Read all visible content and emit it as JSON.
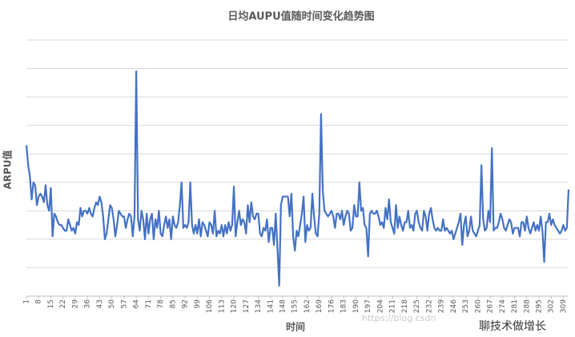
{
  "chart_data": {
    "type": "line",
    "title": "日均AUPU值随时间变化趋势图",
    "x_label": "时间",
    "y_label": "ARPU值",
    "annotations": [
      "https://blog.csdn",
      "聊技术做增长"
    ],
    "xlim": [
      1,
      312
    ],
    "xticks": [
      1,
      8,
      15,
      22,
      29,
      36,
      43,
      50,
      57,
      64,
      71,
      78,
      85,
      92,
      99,
      106,
      113,
      120,
      127,
      134,
      141,
      148,
      155,
      162,
      169,
      176,
      183,
      190,
      197,
      204,
      211,
      218,
      225,
      232,
      239,
      246,
      253,
      260,
      267,
      274,
      281,
      288,
      295,
      302,
      309
    ],
    "ylim": [
      0,
      9
    ],
    "yticks": [
      0,
      1,
      2,
      3,
      4,
      5,
      6,
      7,
      8,
      9
    ],
    "grid": true,
    "show_ytick_labels": false,
    "x": [
      1,
      2,
      3,
      4,
      5,
      6,
      7,
      8,
      9,
      10,
      11,
      12,
      13,
      14,
      15,
      16,
      17,
      18,
      19,
      20,
      21,
      22,
      23,
      24,
      25,
      26,
      27,
      28,
      29,
      30,
      31,
      32,
      33,
      34,
      35,
      36,
      37,
      38,
      39,
      40,
      41,
      42,
      43,
      44,
      45,
      46,
      47,
      48,
      49,
      50,
      51,
      52,
      53,
      54,
      55,
      56,
      57,
      58,
      59,
      60,
      61,
      62,
      63,
      64,
      65,
      66,
      67,
      68,
      69,
      70,
      71,
      72,
      73,
      74,
      75,
      76,
      77,
      78,
      79,
      80,
      81,
      82,
      83,
      84,
      85,
      86,
      87,
      88,
      89,
      90,
      91,
      92,
      93,
      94,
      95,
      96,
      97,
      98,
      99,
      100,
      101,
      102,
      103,
      104,
      105,
      106,
      107,
      108,
      109,
      110,
      111,
      112,
      113,
      114,
      115,
      116,
      117,
      118,
      119,
      120,
      121,
      122,
      123,
      124,
      125,
      126,
      127,
      128,
      129,
      130,
      131,
      132,
      133,
      134,
      135,
      136,
      137,
      138,
      139,
      140,
      141,
      142,
      143,
      144,
      145,
      146,
      147,
      148,
      149,
      150,
      151,
      152,
      153,
      154,
      155,
      156,
      157,
      158,
      159,
      160,
      161,
      162,
      163,
      164,
      165,
      166,
      167,
      168,
      169,
      170,
      171,
      172,
      173,
      174,
      175,
      176,
      177,
      178,
      179,
      180,
      181,
      182,
      183,
      184,
      185,
      186,
      187,
      188,
      189,
      190,
      191,
      192,
      193,
      194,
      195,
      196,
      197,
      198,
      199,
      200,
      201,
      202,
      203,
      204,
      205,
      206,
      207,
      208,
      209,
      210,
      211,
      212,
      213,
      214,
      215,
      216,
      217,
      218,
      219,
      220,
      221,
      222,
      223,
      224,
      225,
      226,
      227,
      228,
      229,
      230,
      231,
      232,
      233,
      234,
      235,
      236,
      237,
      238,
      239,
      240,
      241,
      242,
      243,
      244,
      245,
      246,
      247,
      248,
      249,
      250,
      251,
      252,
      253,
      254,
      255,
      256,
      257,
      258,
      259,
      260,
      261,
      262,
      263,
      264,
      265,
      266,
      267,
      268,
      269,
      270,
      271,
      272,
      273,
      274,
      275,
      276,
      277,
      278,
      279,
      280,
      281,
      282,
      283,
      284,
      285,
      286,
      287,
      288,
      289,
      290,
      291,
      292,
      293,
      294,
      295,
      296,
      297,
      298,
      299,
      300,
      301,
      302,
      303,
      304,
      305,
      306,
      307,
      308,
      309,
      310,
      311,
      312
    ],
    "series": [
      {
        "name": "ARPU值",
        "color": "#4472c4",
        "values": [
          5.3,
          4.6,
          4.2,
          3.4,
          4.0,
          3.9,
          3.2,
          3.5,
          3.6,
          3.5,
          3.3,
          3.9,
          3.2,
          3.0,
          3.8,
          2.1,
          2.9,
          2.8,
          2.6,
          2.5,
          2.5,
          2.4,
          2.3,
          2.3,
          2.7,
          2.5,
          2.3,
          2.4,
          2.2,
          2.6,
          2.5,
          3.1,
          2.8,
          3.0,
          3.0,
          2.9,
          3.1,
          2.9,
          2.8,
          3.1,
          3.3,
          3.2,
          3.5,
          3.3,
          2.8,
          2.0,
          2.2,
          2.7,
          3.2,
          3.1,
          2.7,
          2.1,
          2.5,
          3.0,
          2.9,
          2.8,
          2.8,
          2.4,
          2.7,
          2.9,
          2.8,
          2.1,
          2.8,
          7.9,
          2.7,
          2.3,
          3.0,
          2.7,
          2.0,
          2.9,
          2.2,
          2.7,
          2.9,
          2.0,
          2.7,
          2.4,
          3.0,
          2.2,
          2.1,
          2.5,
          2.8,
          2.4,
          2.7,
          2.0,
          2.8,
          2.5,
          2.4,
          2.6,
          3.2,
          4.0,
          2.4,
          2.5,
          2.4,
          2.6,
          4.0,
          2.5,
          2.2,
          2.5,
          2.2,
          2.7,
          2.1,
          2.6,
          2.5,
          2.3,
          2.1,
          2.6,
          2.5,
          2.2,
          3.0,
          2.1,
          2.3,
          2.2,
          2.5,
          2.1,
          2.5,
          2.2,
          2.6,
          2.3,
          2.5,
          3.85,
          2.1,
          2.6,
          3.0,
          2.5,
          2.7,
          2.6,
          2.2,
          3.2,
          2.6,
          3.3,
          2.8,
          2.7,
          2.9,
          2.9,
          2.2,
          2.1,
          2.4,
          2.3,
          2.7,
          1.9,
          2.4,
          2.4,
          1.8,
          2.9,
          1.7,
          0.37,
          3.2,
          3.5,
          3.5,
          3.5,
          3.5,
          2.8,
          3.6,
          2.1,
          1.6,
          2.3,
          2.1,
          2.5,
          2.9,
          3.5,
          1.9,
          2.5,
          2.3,
          2.4,
          3.6,
          2.8,
          2.2,
          2.1,
          2.9,
          6.4,
          3.7,
          3.0,
          2.9,
          2.8,
          2.9,
          3.0,
          2.8,
          2.4,
          2.9,
          2.9,
          2.7,
          3.0,
          2.5,
          2.8,
          3.0,
          2.9,
          2.3,
          2.4,
          3.2,
          2.8,
          2.8,
          4.0,
          3.0,
          3.1,
          2.5,
          2.4,
          1.4,
          2.9,
          3.0,
          2.9,
          2.9,
          3.0,
          2.8,
          2.5,
          2.6,
          2.4,
          3.1,
          2.7,
          3.4,
          2.6,
          2.4,
          2.2,
          3.2,
          2.4,
          2.8,
          2.5,
          2.3,
          2.6,
          2.6,
          3.0,
          2.4,
          2.5,
          2.3,
          2.9,
          3.0,
          2.6,
          2.4,
          2.3,
          3.0,
          2.8,
          2.3,
          2.9,
          3.1,
          2.7,
          2.4,
          2.3,
          2.4,
          2.3,
          2.3,
          2.7,
          2.3,
          2.4,
          2.3,
          2.2,
          2.3,
          2.0,
          2.2,
          2.4,
          2.6,
          2.9,
          1.8,
          2.5,
          2.8,
          2.1,
          2.3,
          2.8,
          2.3,
          2.2,
          2.1,
          2.3,
          2.5,
          4.6,
          2.7,
          2.3,
          2.4,
          3.0,
          2.6,
          5.2,
          2.3,
          2.4,
          2.4,
          2.6,
          2.9,
          2.7,
          2.4,
          2.3,
          2.5,
          2.7,
          2.6,
          2.2,
          2.4,
          2.4,
          2.4,
          2.1,
          2.6,
          2.6,
          2.3,
          2.8,
          2.4,
          2.2,
          2.4,
          2.6,
          2.3,
          2.5,
          2.3,
          2.8,
          2.3,
          1.2,
          2.6,
          2.6,
          2.9,
          2.5,
          2.7,
          2.5,
          2.4,
          2.3,
          2.2,
          2.3,
          2.5,
          2.3,
          2.4,
          3.75
        ]
      }
    ]
  }
}
